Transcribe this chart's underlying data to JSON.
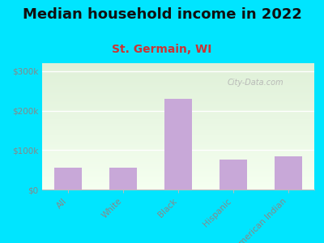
{
  "title": "Median household income in 2022",
  "subtitle": "St. Germain, WI",
  "categories": [
    "All",
    "White",
    "Black",
    "Hispanic",
    "American Indian"
  ],
  "values": [
    55000,
    55000,
    230000,
    75000,
    85000
  ],
  "bar_color": "#c8a8d8",
  "background_outer": "#00e5ff",
  "plot_bg_top": "#dff0d8",
  "plot_bg_bottom": "#f5fff0",
  "yticks": [
    0,
    100000,
    200000,
    300000
  ],
  "ytick_labels": [
    "$0",
    "$100k",
    "$200k",
    "$300k"
  ],
  "ylim": [
    0,
    320000
  ],
  "title_fontsize": 13,
  "subtitle_fontsize": 10,
  "tick_color": "#888888",
  "watermark": "City-Data.com"
}
